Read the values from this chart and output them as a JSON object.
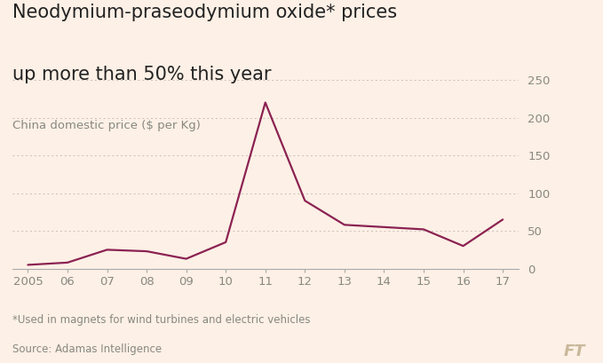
{
  "years": [
    2005,
    2006,
    2007,
    2008,
    2009,
    2010,
    2011,
    2012,
    2013,
    2014,
    2015,
    2016,
    2017
  ],
  "prices": [
    5,
    8,
    25,
    23,
    13,
    35,
    220,
    90,
    58,
    55,
    52,
    30,
    65
  ],
  "line_color": "#8B2252",
  "background_color": "#fdf0e6",
  "grid_color": "#c8c0b8",
  "title_line1": "Neodymium-praseodymium oxide* prices",
  "title_line2": "up more than 50% this year",
  "subtitle": "China domestic price ($ per Kg)",
  "footnote1": "*Used in magnets for wind turbines and electric vehicles",
  "footnote2": "Source: Adamas Intelligence",
  "brand": "FT",
  "yticks": [
    0,
    50,
    100,
    150,
    200,
    250
  ],
  "ylim": [
    0,
    250
  ],
  "xtick_labels": [
    "2005",
    "06",
    "07",
    "08",
    "09",
    "10",
    "11",
    "12",
    "13",
    "14",
    "15",
    "16",
    "17"
  ],
  "title_fontsize": 15,
  "subtitle_fontsize": 9.5,
  "tick_fontsize": 9.5,
  "footnote_fontsize": 8.5,
  "brand_fontsize": 13,
  "title_color": "#222222",
  "subtitle_color": "#888880",
  "tick_color": "#888880",
  "footnote_color": "#888880",
  "brand_color": "#c8b89a",
  "line_width": 1.6
}
